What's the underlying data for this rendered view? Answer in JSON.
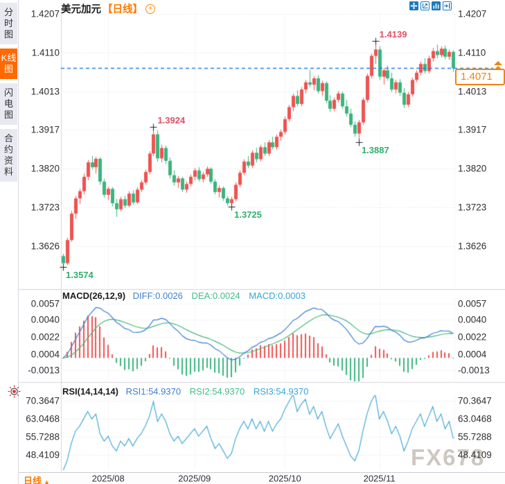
{
  "header": {
    "symbol": "美元加元",
    "timeframe_tag": "【日线】"
  },
  "sidebar": {
    "items": [
      {
        "label": "分时图",
        "active": false
      },
      {
        "label": "K线图",
        "active": true
      },
      {
        "label": "闪电图",
        "active": false
      },
      {
        "label": "合约资料",
        "active": false
      }
    ]
  },
  "toolbar": {
    "icons": [
      "pan-tool",
      "scale-axes",
      "fit-chart",
      "go-latest"
    ]
  },
  "price_scale": {
    "ticks": [
      "1.4207",
      "1.4110",
      "1.4013",
      "1.3917",
      "1.3820",
      "1.3723",
      "1.3626"
    ]
  },
  "current_price": {
    "value": "1.4071"
  },
  "indicators": {
    "macd": {
      "title": "MACD(26,12,9)",
      "diff_label": "DIFF:0.0026",
      "dea_label": "DEA:0.0024",
      "macd_label": "MACD:0.0003",
      "ticks": [
        "0.0057",
        "0.0040",
        "0.0022",
        "0.0004",
        "-0.0013"
      ]
    },
    "rsi": {
      "title": "RSI(14,14,14)",
      "rsi1_label": "RSI1:54.9370",
      "rsi2_label": "RSI2:54.9370",
      "rsi3_label": "RSI3:54.9370",
      "ticks": [
        "70.3647",
        "63.0468",
        "55.7288",
        "48.4109"
      ]
    }
  },
  "bottom_bar": {
    "timeframe": "日线",
    "dates": [
      "2025/08",
      "2025/09",
      "2025/10",
      "2025/11"
    ]
  },
  "watermark": "FX678",
  "colors": {
    "up": "#ef5350",
    "down": "#3bb47e",
    "diff_line": "#3b7fd0",
    "dea_line": "#45b77d",
    "rsi_line": "#45a9d6",
    "price_line": "#1f7ee0",
    "grid": "#e0e0e6",
    "divider": "#d3d3db",
    "accent_orange": "#ff7a00",
    "high_label": "#e14f63",
    "low_label": "#2fae6d"
  },
  "chart_data": {
    "type": "candlestick",
    "symbol": "美元加元",
    "interval": "日线",
    "title": "美元加元【日线】",
    "y_ticks": [
      1.4207,
      1.411,
      1.4013,
      1.3917,
      1.382,
      1.3723,
      1.3626
    ],
    "price_line": 1.4071,
    "x_labels": [
      "2025/08",
      "2025/09",
      "2025/10",
      "2025/11"
    ],
    "annotations": [
      {
        "text": "1.3574",
        "kind": "low",
        "candle": 0,
        "price": 1.3574
      },
      {
        "text": "1.3924",
        "kind": "high",
        "candle": 22,
        "price": 1.3924
      },
      {
        "text": "1.3725",
        "kind": "low",
        "candle": 41,
        "price": 1.3725
      },
      {
        "text": "1.3887",
        "kind": "low",
        "candle": 72,
        "price": 1.3887
      },
      {
        "text": "1.4139",
        "kind": "high",
        "candle": 76,
        "price": 1.4139
      }
    ],
    "candles": [
      [
        "2025/07/17",
        1.3602,
        1.3608,
        1.3574,
        1.3584
      ],
      [
        "2025/07/18",
        1.3584,
        1.3648,
        1.358,
        1.3642
      ],
      [
        "2025/07/21",
        1.3642,
        1.3715,
        1.3638,
        1.3708
      ],
      [
        "2025/07/22",
        1.3708,
        1.3752,
        1.3695,
        1.3746
      ],
      [
        "2025/07/23",
        1.3746,
        1.377,
        1.3732,
        1.3764
      ],
      [
        "2025/07/24",
        1.3764,
        1.3808,
        1.3756,
        1.38
      ],
      [
        "2025/07/25",
        1.38,
        1.3842,
        1.3792,
        1.3836
      ],
      [
        "2025/07/28",
        1.3836,
        1.3852,
        1.3818,
        1.3824
      ],
      [
        "2025/07/29",
        1.3824,
        1.385,
        1.3808,
        1.3845
      ],
      [
        "2025/07/30",
        1.3845,
        1.3849,
        1.378,
        1.3788
      ],
      [
        "2025/07/31",
        1.3788,
        1.3795,
        1.3748,
        1.3755
      ],
      [
        "2025/08/01",
        1.3755,
        1.3775,
        1.3742,
        1.377
      ],
      [
        "2025/08/04",
        1.377,
        1.3774,
        1.3726,
        1.3734
      ],
      [
        "2025/08/05",
        1.3734,
        1.3745,
        1.37,
        1.3719
      ],
      [
        "2025/08/06",
        1.3719,
        1.375,
        1.3714,
        1.3744
      ],
      [
        "2025/08/07",
        1.3744,
        1.3752,
        1.3722,
        1.3728
      ],
      [
        "2025/08/08",
        1.3728,
        1.3764,
        1.3724,
        1.3758
      ],
      [
        "2025/08/11",
        1.3758,
        1.3766,
        1.373,
        1.3736
      ],
      [
        "2025/08/12",
        1.3736,
        1.3774,
        1.3732,
        1.3768
      ],
      [
        "2025/08/13",
        1.3768,
        1.3792,
        1.3762,
        1.3786
      ],
      [
        "2025/08/14",
        1.3786,
        1.3818,
        1.378,
        1.3812
      ],
      [
        "2025/08/15",
        1.3812,
        1.3864,
        1.3806,
        1.3858
      ],
      [
        "2025/08/18",
        1.3858,
        1.3924,
        1.3852,
        1.3906
      ],
      [
        "2025/08/19",
        1.3906,
        1.3916,
        1.3838,
        1.3846
      ],
      [
        "2025/08/20",
        1.3846,
        1.388,
        1.3836,
        1.3872
      ],
      [
        "2025/08/21",
        1.3872,
        1.3878,
        1.3832,
        1.384
      ],
      [
        "2025/08/22",
        1.384,
        1.3848,
        1.3796,
        1.3804
      ],
      [
        "2025/08/25",
        1.3804,
        1.3816,
        1.3778,
        1.3786
      ],
      [
        "2025/08/26",
        1.3786,
        1.3802,
        1.3772,
        1.3796
      ],
      [
        "2025/08/27",
        1.3796,
        1.38,
        1.3762,
        1.3768
      ],
      [
        "2025/08/28",
        1.3768,
        1.3788,
        1.376,
        1.3782
      ],
      [
        "2025/08/29",
        1.3782,
        1.3806,
        1.3776,
        1.38
      ],
      [
        "2025/09/01",
        1.38,
        1.3822,
        1.3792,
        1.3816
      ],
      [
        "2025/09/02",
        1.3816,
        1.3824,
        1.3788,
        1.3794
      ],
      [
        "2025/09/03",
        1.3794,
        1.3812,
        1.3786,
        1.3806
      ],
      [
        "2025/09/04",
        1.3806,
        1.3826,
        1.38,
        1.382
      ],
      [
        "2025/09/05",
        1.382,
        1.3824,
        1.3782,
        1.3788
      ],
      [
        "2025/09/08",
        1.3788,
        1.3794,
        1.3756,
        1.3762
      ],
      [
        "2025/09/09",
        1.3762,
        1.3778,
        1.3748,
        1.3772
      ],
      [
        "2025/09/10",
        1.3772,
        1.3776,
        1.374,
        1.3746
      ],
      [
        "2025/09/11",
        1.3746,
        1.3752,
        1.3728,
        1.3734
      ],
      [
        "2025/09/12",
        1.3734,
        1.375,
        1.3725,
        1.3744
      ],
      [
        "2025/09/15",
        1.3744,
        1.3786,
        1.3738,
        1.378
      ],
      [
        "2025/09/16",
        1.378,
        1.3816,
        1.3774,
        1.381
      ],
      [
        "2025/09/17",
        1.381,
        1.3844,
        1.3804,
        1.3838
      ],
      [
        "2025/09/18",
        1.3838,
        1.3852,
        1.3822,
        1.3828
      ],
      [
        "2025/09/19",
        1.3828,
        1.3866,
        1.3822,
        1.386
      ],
      [
        "2025/09/22",
        1.386,
        1.3872,
        1.3836,
        1.3844
      ],
      [
        "2025/09/23",
        1.3844,
        1.388,
        1.3838,
        1.3874
      ],
      [
        "2025/09/24",
        1.3874,
        1.3886,
        1.3852,
        1.3858
      ],
      [
        "2025/09/25",
        1.3858,
        1.3892,
        1.3852,
        1.3886
      ],
      [
        "2025/09/26",
        1.3886,
        1.39,
        1.3868,
        1.3874
      ],
      [
        "2025/09/29",
        1.3874,
        1.3906,
        1.3868,
        1.39
      ],
      [
        "2025/09/30",
        1.39,
        1.3918,
        1.389,
        1.3912
      ],
      [
        "2025/10/01",
        1.3912,
        1.395,
        1.3906,
        1.3944
      ],
      [
        "2025/10/02",
        1.3944,
        1.398,
        1.3938,
        1.3974
      ],
      [
        "2025/10/03",
        1.3974,
        1.4008,
        1.3964,
        1.4002
      ],
      [
        "2025/10/06",
        1.4002,
        1.4016,
        1.3976,
        1.3982
      ],
      [
        "2025/10/07",
        1.3982,
        1.4024,
        1.3976,
        1.4018
      ],
      [
        "2025/10/08",
        1.4018,
        1.4042,
        1.4008,
        1.4036
      ],
      [
        "2025/10/09",
        1.4036,
        1.4066,
        1.4024,
        1.403
      ],
      [
        "2025/10/10",
        1.403,
        1.4052,
        1.4016,
        1.4046
      ],
      [
        "2025/10/13",
        1.4046,
        1.4054,
        1.4008,
        1.4014
      ],
      [
        "2025/10/14",
        1.4014,
        1.404,
        1.4002,
        1.4034
      ],
      [
        "2025/10/15",
        1.4034,
        1.4038,
        1.3984,
        1.399
      ],
      [
        "2025/10/16",
        1.399,
        1.4004,
        1.3962,
        1.397
      ],
      [
        "2025/10/17",
        1.397,
        1.3998,
        1.3964,
        1.3992
      ],
      [
        "2025/10/20",
        1.3992,
        1.4014,
        1.3986,
        1.4008
      ],
      [
        "2025/10/21",
        1.4008,
        1.4012,
        1.397,
        1.3976
      ],
      [
        "2025/10/22",
        1.3976,
        1.3992,
        1.395,
        1.3958
      ],
      [
        "2025/10/23",
        1.3958,
        1.397,
        1.3924,
        1.393
      ],
      [
        "2025/10/24",
        1.393,
        1.3938,
        1.39,
        1.3908
      ],
      [
        "2025/10/27",
        1.3908,
        1.3942,
        1.3887,
        1.3936
      ],
      [
        "2025/10/28",
        1.3936,
        1.3998,
        1.393,
        1.3992
      ],
      [
        "2025/10/29",
        1.3992,
        1.4058,
        1.3986,
        1.4052
      ],
      [
        "2025/10/30",
        1.4052,
        1.4108,
        1.4046,
        1.4102
      ],
      [
        "2025/10/31",
        1.4102,
        1.4139,
        1.4082,
        1.4118
      ],
      [
        "2025/11/03",
        1.4118,
        1.4126,
        1.4042,
        1.405
      ],
      [
        "2025/11/04",
        1.405,
        1.4072,
        1.403,
        1.4066
      ],
      [
        "2025/11/05",
        1.4066,
        1.4078,
        1.404,
        1.4046
      ],
      [
        "2025/11/06",
        1.4046,
        1.406,
        1.4012,
        1.4018
      ],
      [
        "2025/11/07",
        1.4018,
        1.4042,
        1.4008,
        1.4036
      ],
      [
        "2025/11/10",
        1.4036,
        1.4044,
        1.4002,
        1.401
      ],
      [
        "2025/11/11",
        1.401,
        1.4022,
        1.3972,
        1.398
      ],
      [
        "2025/11/12",
        1.398,
        1.4012,
        1.3974,
        1.4006
      ],
      [
        "2025/11/13",
        1.4006,
        1.4048,
        1.4,
        1.4042
      ],
      [
        "2025/11/14",
        1.4042,
        1.4066,
        1.4036,
        1.406
      ],
      [
        "2025/11/17",
        1.406,
        1.4088,
        1.4054,
        1.4082
      ],
      [
        "2025/11/18",
        1.4082,
        1.4096,
        1.4058,
        1.4064
      ],
      [
        "2025/11/19",
        1.4064,
        1.4102,
        1.4058,
        1.4096
      ],
      [
        "2025/11/20",
        1.4096,
        1.4122,
        1.4088,
        1.4114
      ],
      [
        "2025/11/21",
        1.4114,
        1.413,
        1.4096,
        1.4104
      ],
      [
        "2025/11/24",
        1.4104,
        1.4126,
        1.4098,
        1.412
      ],
      [
        "2025/11/25",
        1.412,
        1.4128,
        1.4094,
        1.41
      ],
      [
        "2025/11/26",
        1.41,
        1.4118,
        1.4092,
        1.4112
      ],
      [
        "2025/11/27",
        1.4112,
        1.4116,
        1.4062,
        1.4071
      ]
    ],
    "indicators": {
      "macd": {
        "params": [
          26,
          12,
          9
        ],
        "diff": 0.0026,
        "dea": 0.0024,
        "macd": 0.0003,
        "y_ticks": [
          0.0057,
          0.004,
          0.0022,
          0.0004,
          -0.0013
        ]
      },
      "rsi": {
        "params": [
          14,
          14,
          14
        ],
        "rsi1": 54.937,
        "rsi2": 54.937,
        "rsi3": 54.937,
        "y_ticks": [
          70.3647,
          63.0468,
          55.7288,
          48.4109
        ],
        "values": [
          42,
          46,
          53,
          58,
          60,
          63,
          66,
          63,
          65,
          57,
          54,
          56,
          52,
          50,
          54,
          52,
          55,
          52,
          55,
          57,
          60,
          64,
          70,
          62,
          65,
          62,
          57,
          54,
          56,
          53,
          55,
          57,
          59,
          56,
          58,
          60,
          55,
          51,
          53,
          50,
          47,
          49,
          55,
          59,
          62,
          59,
          63,
          59,
          62,
          58,
          62,
          58,
          61,
          63,
          67,
          70,
          73,
          66,
          69,
          71,
          65,
          68,
          63,
          66,
          60,
          55,
          58,
          61,
          56,
          52,
          48,
          46,
          50,
          58,
          65,
          70,
          73,
          63,
          66,
          62,
          57,
          60,
          56,
          50,
          54,
          59,
          62,
          65,
          60,
          64,
          68,
          62,
          65,
          59,
          62,
          55
        ]
      }
    }
  }
}
